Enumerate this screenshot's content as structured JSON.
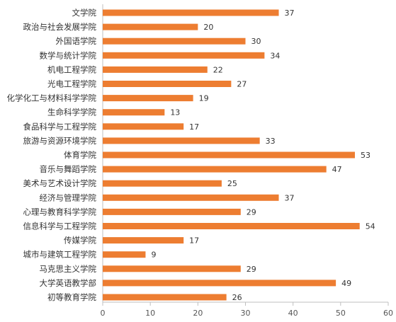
{
  "chart_data": {
    "type": "bar",
    "orientation": "horizontal",
    "categories": [
      "文学院",
      "政治与社会发展学院",
      "外国语学院",
      "数学与统计学院",
      "机电工程学院",
      "光电工程学院",
      "化学化工与材料科学学院",
      "生命科学学院",
      "食品科学与工程学院",
      "旅游与资源环境学院",
      "体育学院",
      "音乐与舞蹈学院",
      "美术与艺术设计学院",
      "经济与管理学院",
      "心理与教育科学学院",
      "信息科学与工程学院",
      "传媒学院",
      "城市与建筑工程学院",
      "马克思主义学院",
      "大学英语教学部",
      "初等教育学院"
    ],
    "values": [
      37,
      20,
      30,
      34,
      22,
      27,
      19,
      13,
      17,
      33,
      53,
      47,
      25,
      37,
      29,
      54,
      17,
      9,
      29,
      49,
      26
    ],
    "title": "",
    "xlabel": "",
    "ylabel": "",
    "xlim": [
      0,
      60
    ],
    "x_ticks": [
      0,
      10,
      20,
      30,
      40,
      50,
      60
    ],
    "grid": false,
    "legend": "none",
    "bar_color": "#ED7D31",
    "axis_color": "#BFBFBF"
  }
}
